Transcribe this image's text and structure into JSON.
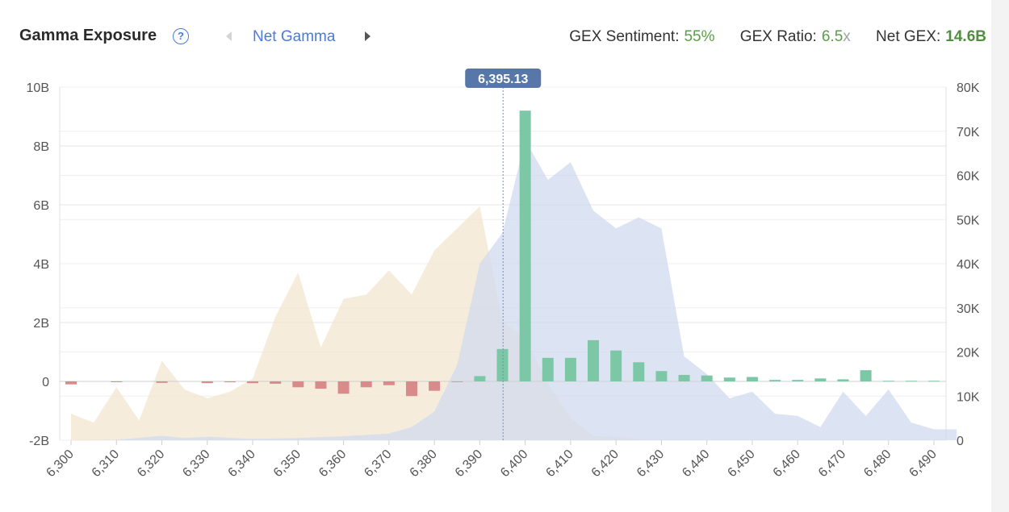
{
  "header": {
    "title": "Gamma Exposure",
    "help_icon": "?",
    "view_label": "Net Gamma",
    "stats": [
      {
        "label": "GEX Sentiment:",
        "value": "55%",
        "unit": "",
        "bold": false
      },
      {
        "label": "GEX Ratio:",
        "value": "6.5",
        "unit": "x",
        "bold": false
      },
      {
        "label": "Net GEX:",
        "value": "14.6B",
        "unit": "",
        "bold": true
      }
    ]
  },
  "colors": {
    "positive_bar": "#7cc8a6",
    "negative_bar": "#d98a8a",
    "put_area": "#f3e4cf",
    "call_area": "#cfdaf0",
    "price_tag": "#5677a8",
    "accent_blue": "#4a7bd8",
    "accent_green": "#5a9e48"
  },
  "chart_data": {
    "type": "bar",
    "current_price_label": "6,395.13",
    "current_price": 6395.13,
    "xlim": [
      6300,
      6495
    ],
    "x_ticks": [
      6300,
      6310,
      6320,
      6330,
      6340,
      6350,
      6360,
      6370,
      6380,
      6390,
      6400,
      6410,
      6420,
      6430,
      6440,
      6450,
      6460,
      6470,
      6480,
      6490
    ],
    "x_tick_labels": [
      "6,300",
      "6,310",
      "6,320",
      "6,330",
      "6,340",
      "6,350",
      "6,360",
      "6,370",
      "6,380",
      "6,390",
      "6,400",
      "6,410",
      "6,420",
      "6,430",
      "6,440",
      "6,450",
      "6,460",
      "6,470",
      "6,480",
      "6,490"
    ],
    "y_left": {
      "ylim": [
        -2,
        10
      ],
      "ticks": [
        -2,
        0,
        2,
        4,
        6,
        8,
        10
      ],
      "tick_labels": [
        "-2B",
        "0",
        "2B",
        "4B",
        "6B",
        "8B",
        "10B"
      ]
    },
    "y_right": {
      "ylim": [
        0,
        80000
      ],
      "ticks": [
        0,
        10000,
        20000,
        30000,
        40000,
        50000,
        60000,
        70000,
        80000
      ],
      "tick_labels": [
        "0",
        "10K",
        "20K",
        "30K",
        "40K",
        "50K",
        "60K",
        "70K",
        "80K"
      ]
    },
    "grid": true,
    "net_gamma_bars": {
      "strikes": [
        6300,
        6310,
        6320,
        6330,
        6335,
        6340,
        6345,
        6350,
        6355,
        6360,
        6365,
        6370,
        6375,
        6380,
        6385,
        6390,
        6395,
        6400,
        6405,
        6410,
        6415,
        6420,
        6425,
        6430,
        6435,
        6440,
        6445,
        6450,
        6455,
        6460,
        6465,
        6470,
        6475,
        6480,
        6485,
        6490
      ],
      "values": [
        -0.1,
        -0.02,
        -0.05,
        -0.06,
        -0.03,
        -0.06,
        -0.08,
        -0.2,
        -0.25,
        -0.42,
        -0.2,
        -0.13,
        -0.5,
        -0.32,
        0.0,
        0.18,
        1.1,
        9.2,
        0.8,
        0.8,
        1.4,
        1.05,
        0.65,
        0.35,
        0.22,
        0.2,
        0.13,
        0.15,
        0.05,
        0.05,
        0.1,
        0.07,
        0.38,
        0.02,
        0.02,
        0.02
      ]
    },
    "put_area": {
      "x": [
        6300,
        6305,
        6310,
        6315,
        6320,
        6325,
        6330,
        6335,
        6340,
        6345,
        6350,
        6355,
        6360,
        6365,
        6370,
        6375,
        6380,
        6385,
        6390,
        6395,
        6400,
        6405,
        6410,
        6415,
        6420,
        6425,
        6430,
        6440,
        6450,
        6460,
        6470,
        6480,
        6490,
        6495
      ],
      "y": [
        6000,
        4000,
        12000,
        4500,
        18000,
        11500,
        9500,
        11000,
        14000,
        28000,
        38000,
        21000,
        32000,
        33000,
        38500,
        33000,
        43000,
        48000,
        53000,
        27000,
        23000,
        13000,
        5000,
        1000,
        800,
        300,
        100,
        50,
        20,
        10,
        10,
        5,
        5,
        5
      ]
    },
    "call_area": {
      "x": [
        6300,
        6310,
        6320,
        6325,
        6330,
        6340,
        6350,
        6360,
        6370,
        6375,
        6380,
        6385,
        6390,
        6395,
        6400,
        6405,
        6410,
        6415,
        6420,
        6425,
        6430,
        6435,
        6440,
        6445,
        6450,
        6455,
        6460,
        6465,
        6470,
        6475,
        6480,
        6485,
        6490,
        6495
      ],
      "y": [
        0,
        100,
        1000,
        500,
        800,
        300,
        500,
        900,
        1500,
        3000,
        6500,
        17000,
        40000,
        47000,
        68000,
        59000,
        63000,
        52000,
        48000,
        50500,
        48000,
        19000,
        15000,
        9500,
        11000,
        6000,
        5500,
        3000,
        11000,
        5500,
        11500,
        4000,
        2500,
        2500
      ]
    }
  }
}
